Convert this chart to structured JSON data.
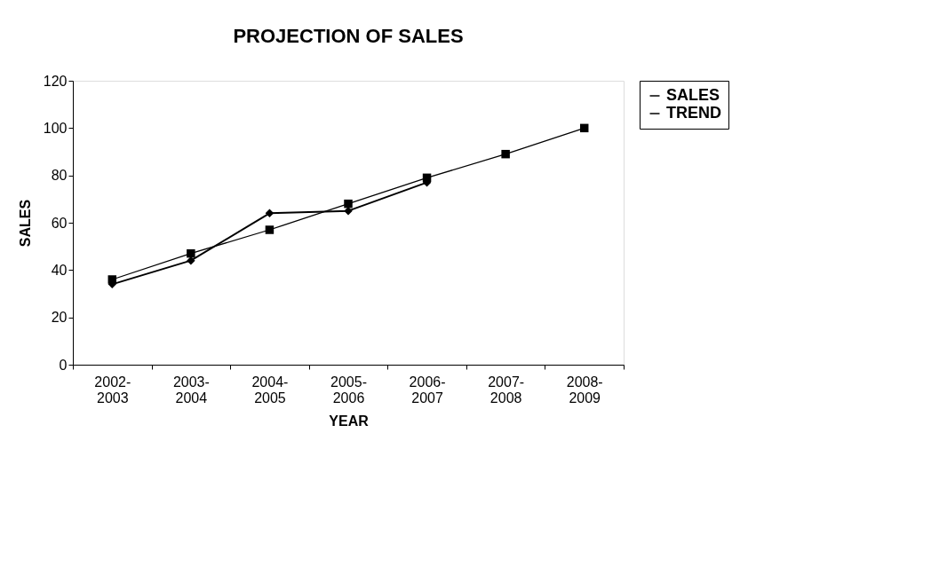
{
  "chart_data": {
    "type": "line",
    "title": "PROJECTION OF SALES",
    "xlabel": "YEAR",
    "ylabel": "SALES",
    "categories": [
      "2002-\n2003",
      "2003-\n2004",
      "2004-\n2005",
      "2005-\n2006",
      "2006-\n2007",
      "2007-\n2008",
      "2008-\n2009"
    ],
    "series": [
      {
        "name": "SALES",
        "color": "#000000",
        "marker": "diamond",
        "values": [
          34,
          44,
          64,
          65,
          77,
          null,
          null
        ]
      },
      {
        "name": "TREND",
        "color": "#000000",
        "marker": "square",
        "values": [
          36,
          47,
          57,
          68,
          79,
          89,
          100
        ]
      }
    ],
    "ylim": [
      0,
      120
    ],
    "yticks": [
      0,
      20,
      40,
      60,
      80,
      100,
      120
    ],
    "grid": false,
    "legend": "right",
    "line_style": "solid"
  }
}
